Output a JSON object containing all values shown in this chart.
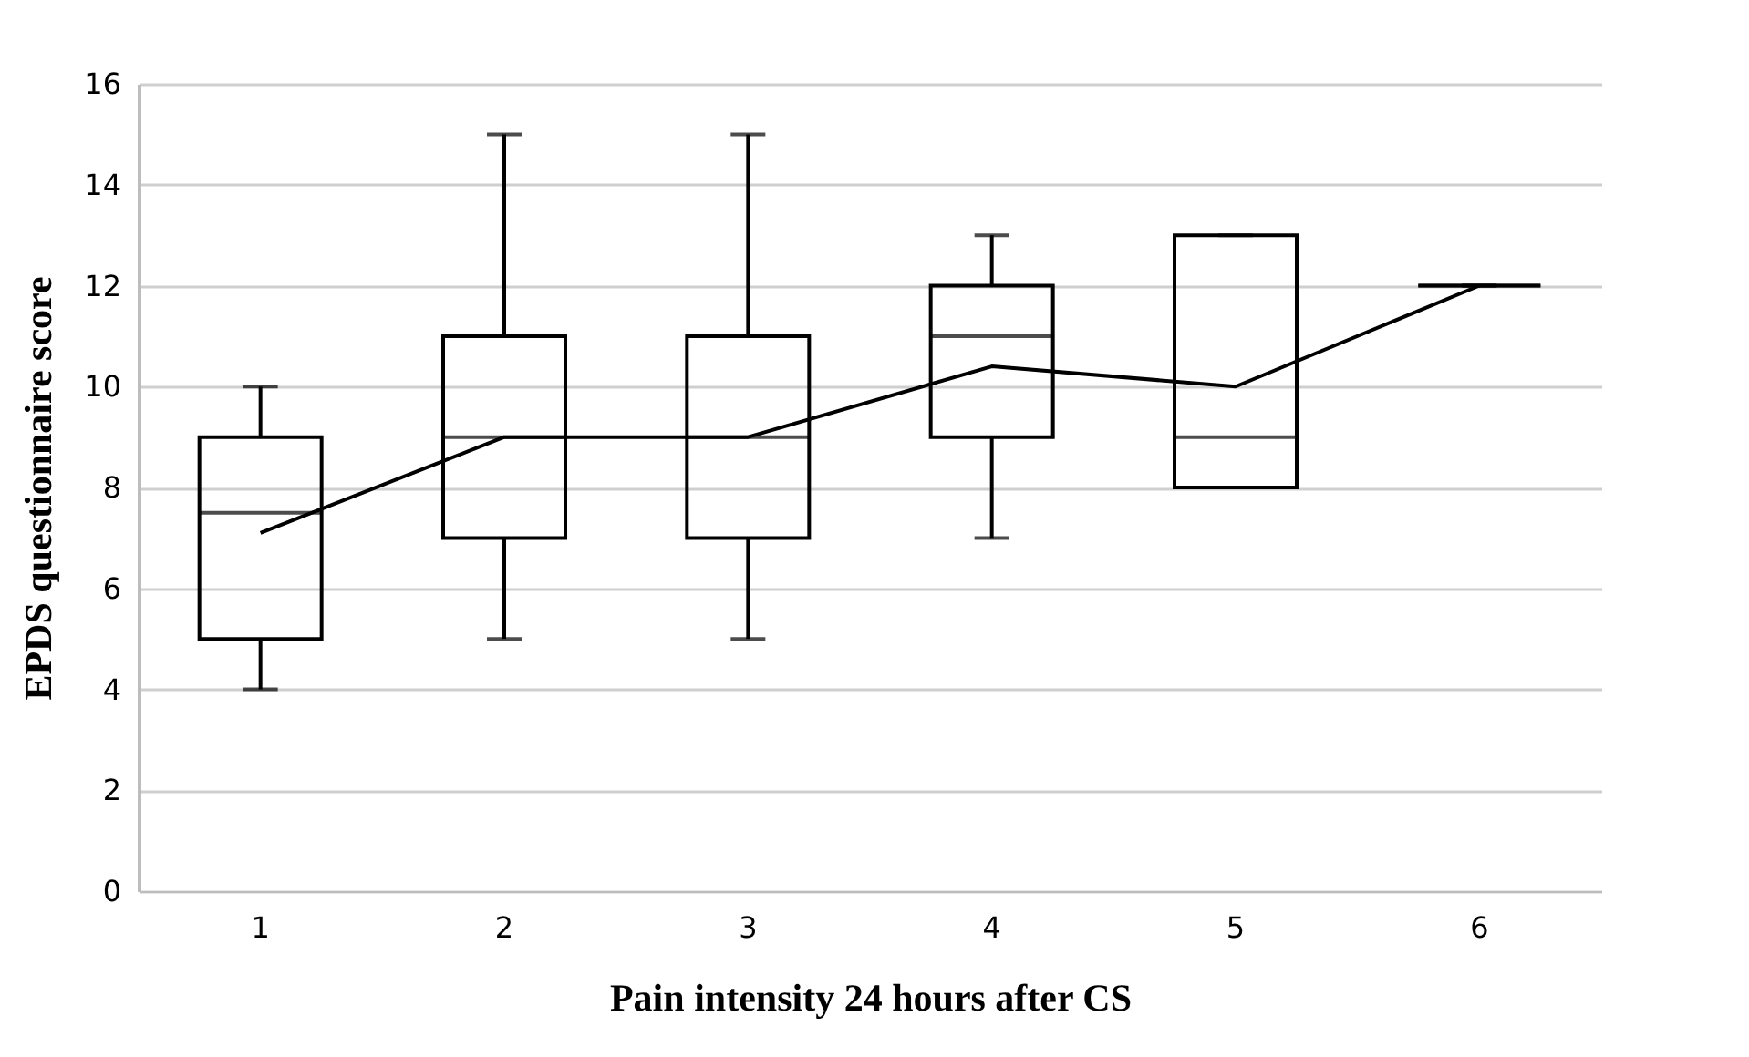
{
  "chart_data": {
    "type": "box",
    "xlabel": "Pain intensity 24 hours after CS",
    "ylabel": "EPDS questionnaire  score",
    "categories": [
      "1",
      "2",
      "3",
      "4",
      "5",
      "6"
    ],
    "color": "#000000",
    "boxes": [
      {
        "low": 4,
        "q1": 5,
        "median": 7.5,
        "q3": 9,
        "high": 10
      },
      {
        "low": 5,
        "q1": 7,
        "median": 9,
        "q3": 11,
        "high": 15
      },
      {
        "low": 5,
        "q1": 7,
        "median": 9,
        "q3": 11,
        "high": 15
      },
      {
        "low": 7,
        "q1": 9,
        "median": 11,
        "q3": 12,
        "high": 13
      },
      {
        "low": 8,
        "q1": 8,
        "median": 9,
        "q3": 13,
        "high": 13
      },
      {
        "low": 12,
        "q1": 12,
        "median": 12,
        "q3": 12,
        "high": 12
      }
    ],
    "series": [
      {
        "type": "line",
        "color": "#000000",
        "values": [
          7.1,
          9,
          9,
          10.4,
          10,
          12
        ]
      }
    ],
    "ylim": [
      0,
      16
    ],
    "yticks": [
      0,
      2,
      4,
      6,
      8,
      10,
      12,
      14,
      16
    ],
    "grid": "y",
    "marker": "none"
  }
}
